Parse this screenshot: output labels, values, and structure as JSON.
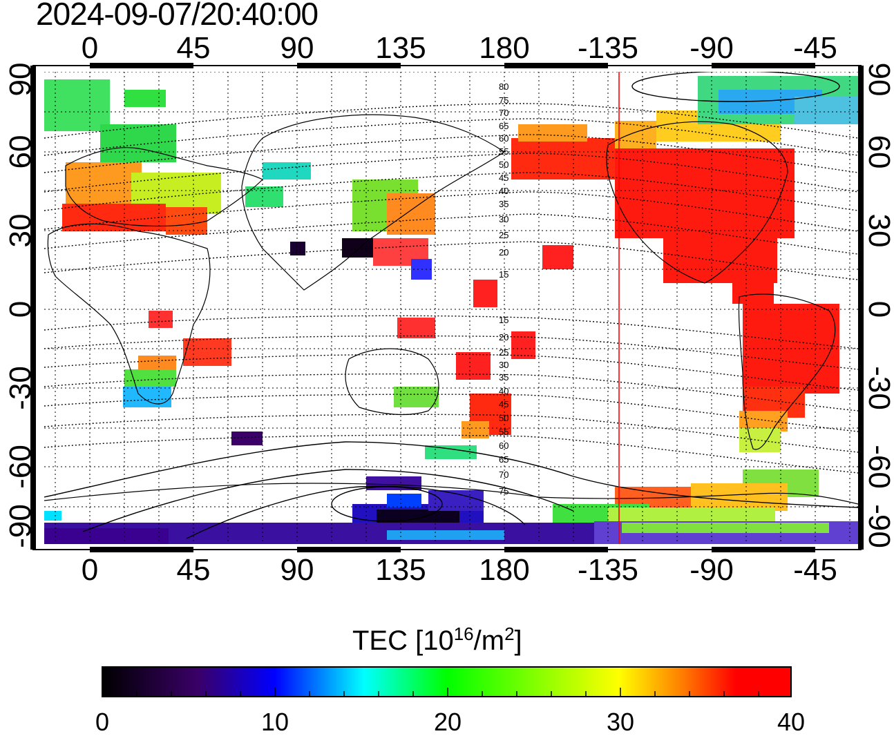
{
  "timestamp": "2024-09-07/20:40:00",
  "top_longitude_ticks": [
    "0",
    "45",
    "90",
    "135",
    "180",
    "-135",
    "-90",
    "-45"
  ],
  "bottom_longitude_ticks": [
    "0",
    "45",
    "90",
    "135",
    "180",
    "-135",
    "-90",
    "-45"
  ],
  "left_latitude_ticks": [
    "90",
    "60",
    "30",
    "0",
    "-30",
    "-60",
    "-90"
  ],
  "right_latitude_ticks": [
    "90",
    "60",
    "30",
    "0",
    "-30",
    "-60",
    "-90"
  ],
  "contour_labels": [
    "80",
    "75",
    "70",
    "65",
    "60",
    "55",
    "50",
    "45",
    "40",
    "35",
    "30",
    "25",
    "20",
    "15",
    "15",
    "20",
    "25",
    "30",
    "35",
    "40",
    "45",
    "50",
    "55",
    "60",
    "65",
    "70",
    "75"
  ],
  "colorbar": {
    "title_prefix": "TEC  [10",
    "title_exp1": "16",
    "title_mid": "/m",
    "title_exp2": "2",
    "title_suffix": "]",
    "ticks": [
      "0",
      "10",
      "20",
      "30",
      "40"
    ],
    "stops": [
      "#000000",
      "#3a0068",
      "#0000ff",
      "#00ffff",
      "#00ff00",
      "#ffff00",
      "#ff8000",
      "#ff0000"
    ]
  },
  "terminator_color": "#ff0000"
}
